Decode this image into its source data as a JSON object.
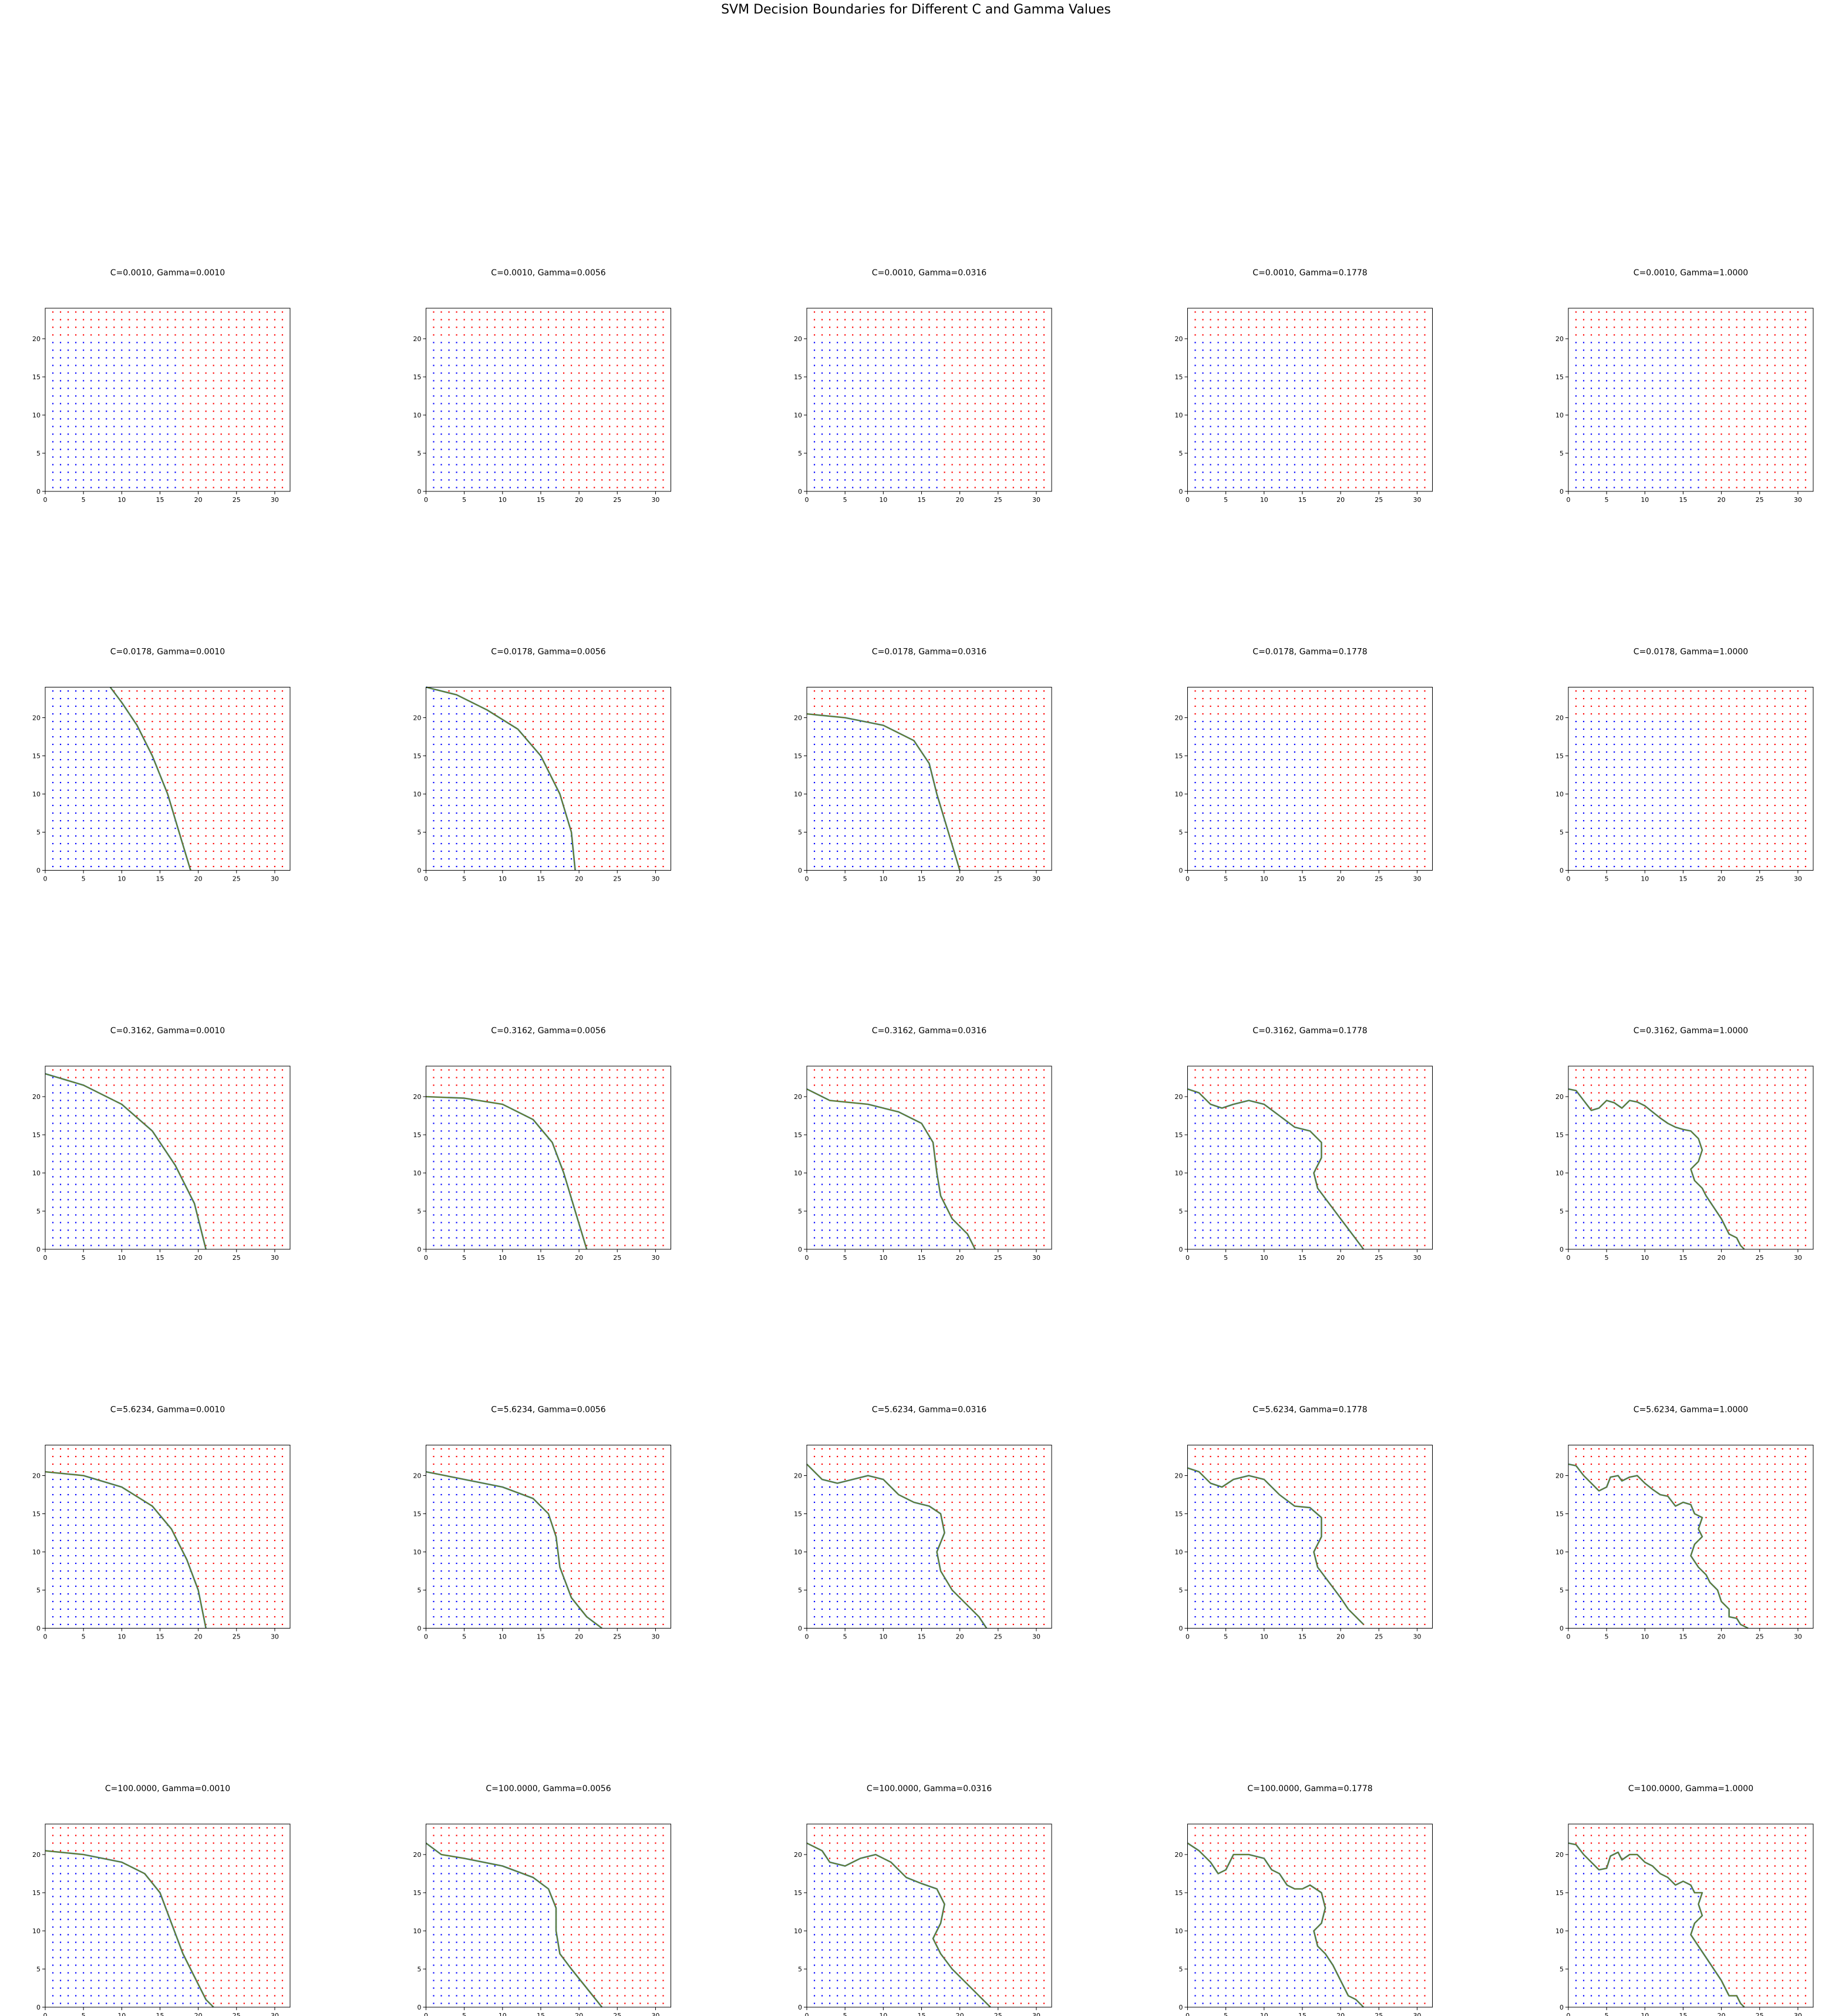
{
  "chart_data": {
    "type": "scatter",
    "title": "SVM Decision Boundaries for Different C and Gamma Values",
    "layout": {
      "rows": 5,
      "cols": 5
    },
    "xlim": [
      0,
      32
    ],
    "ylim": [
      0,
      24
    ],
    "xticks": [
      0,
      5,
      10,
      15,
      20,
      25,
      30
    ],
    "yticks": [
      0,
      5,
      10,
      15,
      20
    ],
    "grid": false,
    "classes": [
      {
        "color": "#0000ff",
        "label": ""
      },
      {
        "color": "#ff0000",
        "label": ""
      }
    ],
    "boundary_color": "#808000",
    "C_values": [
      "0.0010",
      "0.0178",
      "0.3162",
      "5.6234",
      "100.0000"
    ],
    "gamma_values": [
      "0.0010",
      "0.0056",
      "0.0316",
      "0.1778",
      "1.0000"
    ],
    "panels": [
      {
        "title": "C=0.0010, Gamma=0.0010",
        "boundary": []
      },
      {
        "title": "C=0.0010, Gamma=0.0056",
        "boundary": []
      },
      {
        "title": "C=0.0010, Gamma=0.0316",
        "boundary": []
      },
      {
        "title": "C=0.0010, Gamma=0.1778",
        "boundary": []
      },
      {
        "title": "C=0.0010, Gamma=1.0000",
        "boundary": []
      },
      {
        "title": "C=0.0178, Gamma=0.0010",
        "boundary": [
          [
            8.5,
            24
          ],
          [
            10,
            22
          ],
          [
            12,
            19
          ],
          [
            14,
            15
          ],
          [
            16,
            10
          ],
          [
            17.5,
            5
          ],
          [
            19,
            0
          ]
        ]
      },
      {
        "title": "C=0.0178, Gamma=0.0056",
        "boundary": [
          [
            0,
            24
          ],
          [
            4,
            23
          ],
          [
            8,
            21
          ],
          [
            12,
            18.5
          ],
          [
            15,
            15
          ],
          [
            17.5,
            10
          ],
          [
            19,
            5
          ],
          [
            19.5,
            0
          ]
        ]
      },
      {
        "title": "C=0.0178, Gamma=0.0316",
        "boundary": [
          [
            0,
            20.5
          ],
          [
            5,
            20
          ],
          [
            10,
            19
          ],
          [
            14,
            17
          ],
          [
            16,
            14
          ],
          [
            17,
            10
          ],
          [
            18.5,
            5
          ],
          [
            20,
            0
          ]
        ]
      },
      {
        "title": "C=0.0178, Gamma=0.1778",
        "boundary": []
      },
      {
        "title": "C=0.0178, Gamma=1.0000",
        "boundary": []
      },
      {
        "title": "C=0.3162, Gamma=0.0010",
        "boundary": [
          [
            0,
            23
          ],
          [
            5,
            21.5
          ],
          [
            10,
            19
          ],
          [
            14,
            15.5
          ],
          [
            17,
            11
          ],
          [
            19.5,
            6
          ],
          [
            21,
            0
          ]
        ]
      },
      {
        "title": "C=0.3162, Gamma=0.0056",
        "boundary": [
          [
            0,
            20
          ],
          [
            5,
            19.8
          ],
          [
            10,
            19
          ],
          [
            14,
            17
          ],
          [
            16.5,
            14
          ],
          [
            18,
            10
          ],
          [
            19.5,
            5
          ],
          [
            21,
            0
          ]
        ]
      },
      {
        "title": "C=0.3162, Gamma=0.0316",
        "boundary": [
          [
            0,
            21
          ],
          [
            3,
            19.5
          ],
          [
            8,
            19
          ],
          [
            12,
            18
          ],
          [
            15,
            16.5
          ],
          [
            16.5,
            14
          ],
          [
            17,
            10
          ],
          [
            17.5,
            7
          ],
          [
            19,
            4
          ],
          [
            21,
            2
          ],
          [
            22,
            0
          ]
        ]
      },
      {
        "title": "C=0.3162, Gamma=0.1778",
        "boundary": [
          [
            0,
            21
          ],
          [
            1.5,
            20.5
          ],
          [
            3,
            19
          ],
          [
            4.5,
            18.5
          ],
          [
            6,
            19
          ],
          [
            8,
            19.5
          ],
          [
            10,
            19
          ],
          [
            12,
            17.5
          ],
          [
            14,
            16
          ],
          [
            16,
            15.5
          ],
          [
            17.5,
            14
          ],
          [
            17.5,
            12
          ],
          [
            16.5,
            10
          ],
          [
            17,
            8
          ],
          [
            18.5,
            6
          ],
          [
            20,
            4
          ],
          [
            21.5,
            2
          ],
          [
            23,
            0
          ]
        ]
      },
      {
        "title": "C=0.3162, Gamma=1.0000",
        "boundary": [
          [
            0,
            21
          ],
          [
            1,
            20.8
          ],
          [
            2,
            19.5
          ],
          [
            3,
            18.2
          ],
          [
            4,
            18.5
          ],
          [
            5,
            19.5
          ],
          [
            6,
            19.2
          ],
          [
            7,
            18.5
          ],
          [
            8,
            19.5
          ],
          [
            9,
            19.3
          ],
          [
            10,
            18.8
          ],
          [
            11,
            18
          ],
          [
            12,
            17.2
          ],
          [
            13,
            16.5
          ],
          [
            14,
            16
          ],
          [
            15,
            15.7
          ],
          [
            16,
            15.5
          ],
          [
            17,
            14.5
          ],
          [
            17.5,
            13
          ],
          [
            17,
            11.5
          ],
          [
            16,
            10.5
          ],
          [
            16.5,
            9
          ],
          [
            17.5,
            8
          ],
          [
            18,
            7
          ],
          [
            19,
            5.5
          ],
          [
            20,
            4
          ],
          [
            20.5,
            3
          ],
          [
            21,
            2
          ],
          [
            22,
            1.5
          ],
          [
            22.5,
            0.5
          ],
          [
            23,
            0
          ]
        ]
      },
      {
        "title": "C=5.6234, Gamma=0.0010",
        "boundary": [
          [
            0,
            20.5
          ],
          [
            5,
            20
          ],
          [
            10,
            18.5
          ],
          [
            14,
            16
          ],
          [
            16.5,
            13
          ],
          [
            18.5,
            9
          ],
          [
            20,
            5
          ],
          [
            21,
            0
          ]
        ]
      },
      {
        "title": "C=5.6234, Gamma=0.0056",
        "boundary": [
          [
            0,
            20.5
          ],
          [
            5,
            19.5
          ],
          [
            10,
            18.5
          ],
          [
            14,
            17
          ],
          [
            16,
            15
          ],
          [
            17,
            12
          ],
          [
            17.5,
            8
          ],
          [
            19,
            4
          ],
          [
            21,
            1.5
          ],
          [
            23,
            0
          ]
        ]
      },
      {
        "title": "C=5.6234, Gamma=0.0316",
        "boundary": [
          [
            0,
            21.5
          ],
          [
            2,
            19.5
          ],
          [
            4,
            19
          ],
          [
            6,
            19.5
          ],
          [
            8,
            20
          ],
          [
            10,
            19.5
          ],
          [
            12,
            17.5
          ],
          [
            14,
            16.5
          ],
          [
            16,
            16
          ],
          [
            17.5,
            15
          ],
          [
            18,
            12.5
          ],
          [
            17,
            10
          ],
          [
            17.5,
            7.5
          ],
          [
            19,
            5
          ],
          [
            21,
            3
          ],
          [
            22.5,
            1.5
          ],
          [
            23.5,
            0
          ]
        ]
      },
      {
        "title": "C=5.6234, Gamma=0.1778",
        "boundary": [
          [
            0,
            21
          ],
          [
            1.5,
            20.5
          ],
          [
            3,
            19
          ],
          [
            4.5,
            18.5
          ],
          [
            6,
            19.5
          ],
          [
            8,
            20
          ],
          [
            10,
            19.5
          ],
          [
            12,
            17.5
          ],
          [
            14,
            16
          ],
          [
            16,
            15.8
          ],
          [
            17.5,
            14.5
          ],
          [
            17.5,
            12
          ],
          [
            16.5,
            10
          ],
          [
            17,
            8
          ],
          [
            18.5,
            6
          ],
          [
            20,
            4
          ],
          [
            21,
            2.5
          ],
          [
            22,
            1.5
          ],
          [
            23,
            0.5
          ]
        ]
      },
      {
        "title": "C=5.6234, Gamma=1.0000",
        "boundary": [
          [
            0,
            21.5
          ],
          [
            1,
            21.3
          ],
          [
            2,
            20
          ],
          [
            3,
            19
          ],
          [
            4,
            18
          ],
          [
            5,
            18.5
          ],
          [
            5.5,
            19.8
          ],
          [
            6.5,
            20
          ],
          [
            7,
            19.3
          ],
          [
            8,
            19.8
          ],
          [
            9,
            20
          ],
          [
            10,
            19
          ],
          [
            11,
            18.2
          ],
          [
            12,
            17.5
          ],
          [
            13,
            17.3
          ],
          [
            14,
            16
          ],
          [
            15,
            16.5
          ],
          [
            16,
            16.2
          ],
          [
            16.5,
            15
          ],
          [
            17.5,
            14.5
          ],
          [
            17,
            13
          ],
          [
            17.5,
            12
          ],
          [
            16.5,
            11
          ],
          [
            16,
            9.5
          ],
          [
            17,
            8
          ],
          [
            18,
            7
          ],
          [
            18.5,
            6
          ],
          [
            19.5,
            5
          ],
          [
            20,
            3.5
          ],
          [
            21,
            2.5
          ],
          [
            21,
            1.5
          ],
          [
            22,
            1.3
          ],
          [
            22.5,
            0.5
          ],
          [
            23.5,
            0
          ]
        ]
      },
      {
        "title": "C=100.0000, Gamma=0.0010",
        "boundary": [
          [
            0,
            20.5
          ],
          [
            5,
            20
          ],
          [
            10,
            19
          ],
          [
            13,
            17.5
          ],
          [
            15,
            15
          ],
          [
            16.5,
            11
          ],
          [
            18,
            7
          ],
          [
            19.5,
            4
          ],
          [
            21,
            1
          ],
          [
            22,
            0
          ]
        ]
      },
      {
        "title": "C=100.0000, Gamma=0.0056",
        "boundary": [
          [
            0,
            21.5
          ],
          [
            2,
            20
          ],
          [
            5,
            19.5
          ],
          [
            10,
            18.5
          ],
          [
            14,
            17
          ],
          [
            16,
            15.5
          ],
          [
            17,
            13
          ],
          [
            17,
            10
          ],
          [
            17.5,
            7
          ],
          [
            19,
            5
          ],
          [
            21,
            2.5
          ],
          [
            23,
            0
          ]
        ]
      },
      {
        "title": "C=100.0000, Gamma=0.0316",
        "boundary": [
          [
            0,
            21.5
          ],
          [
            2,
            20.5
          ],
          [
            3,
            19
          ],
          [
            5,
            18.5
          ],
          [
            7,
            19.5
          ],
          [
            9,
            20
          ],
          [
            11,
            19
          ],
          [
            13,
            17
          ],
          [
            15,
            16.2
          ],
          [
            17,
            15.5
          ],
          [
            18,
            13.5
          ],
          [
            17.5,
            11
          ],
          [
            16.5,
            9
          ],
          [
            17.5,
            7
          ],
          [
            19,
            5
          ],
          [
            21,
            3
          ],
          [
            22.5,
            1.5
          ],
          [
            24,
            0
          ]
        ]
      },
      {
        "title": "C=100.0000, Gamma=0.1778",
        "boundary": [
          [
            0,
            21.5
          ],
          [
            1.5,
            20.5
          ],
          [
            3,
            19
          ],
          [
            4,
            17.5
          ],
          [
            5,
            18
          ],
          [
            6,
            20
          ],
          [
            8,
            20
          ],
          [
            10,
            19.5
          ],
          [
            11,
            18
          ],
          [
            12,
            17.5
          ],
          [
            13,
            16
          ],
          [
            14,
            15.5
          ],
          [
            15,
            15.5
          ],
          [
            16,
            16
          ],
          [
            17.5,
            15
          ],
          [
            18,
            13
          ],
          [
            17.5,
            11
          ],
          [
            16.5,
            10
          ],
          [
            17,
            8
          ],
          [
            18,
            7
          ],
          [
            19,
            5.5
          ],
          [
            20,
            3.5
          ],
          [
            21,
            1.5
          ],
          [
            22,
            1
          ],
          [
            23,
            0
          ]
        ]
      },
      {
        "title": "C=100.0000, Gamma=1.0000",
        "boundary": [
          [
            0,
            21.5
          ],
          [
            1,
            21.3
          ],
          [
            2,
            20
          ],
          [
            3,
            19
          ],
          [
            4,
            18
          ],
          [
            5,
            18.2
          ],
          [
            5.5,
            19.8
          ],
          [
            6.5,
            20.3
          ],
          [
            7,
            19.3
          ],
          [
            8,
            20
          ],
          [
            9,
            20
          ],
          [
            10,
            19
          ],
          [
            11,
            18.5
          ],
          [
            12,
            17.5
          ],
          [
            13,
            17
          ],
          [
            14,
            16
          ],
          [
            15,
            16.5
          ],
          [
            16,
            16
          ],
          [
            16.5,
            15
          ],
          [
            17.5,
            15
          ],
          [
            17,
            13.5
          ],
          [
            17.5,
            12
          ],
          [
            16.5,
            11
          ],
          [
            16,
            9.5
          ],
          [
            17,
            8
          ],
          [
            18,
            6.5
          ],
          [
            19,
            5
          ],
          [
            20,
            3.5
          ],
          [
            20.5,
            2.5
          ],
          [
            21,
            1.5
          ],
          [
            22,
            1.5
          ],
          [
            22.5,
            0.5
          ],
          [
            23,
            0
          ]
        ]
      }
    ]
  }
}
